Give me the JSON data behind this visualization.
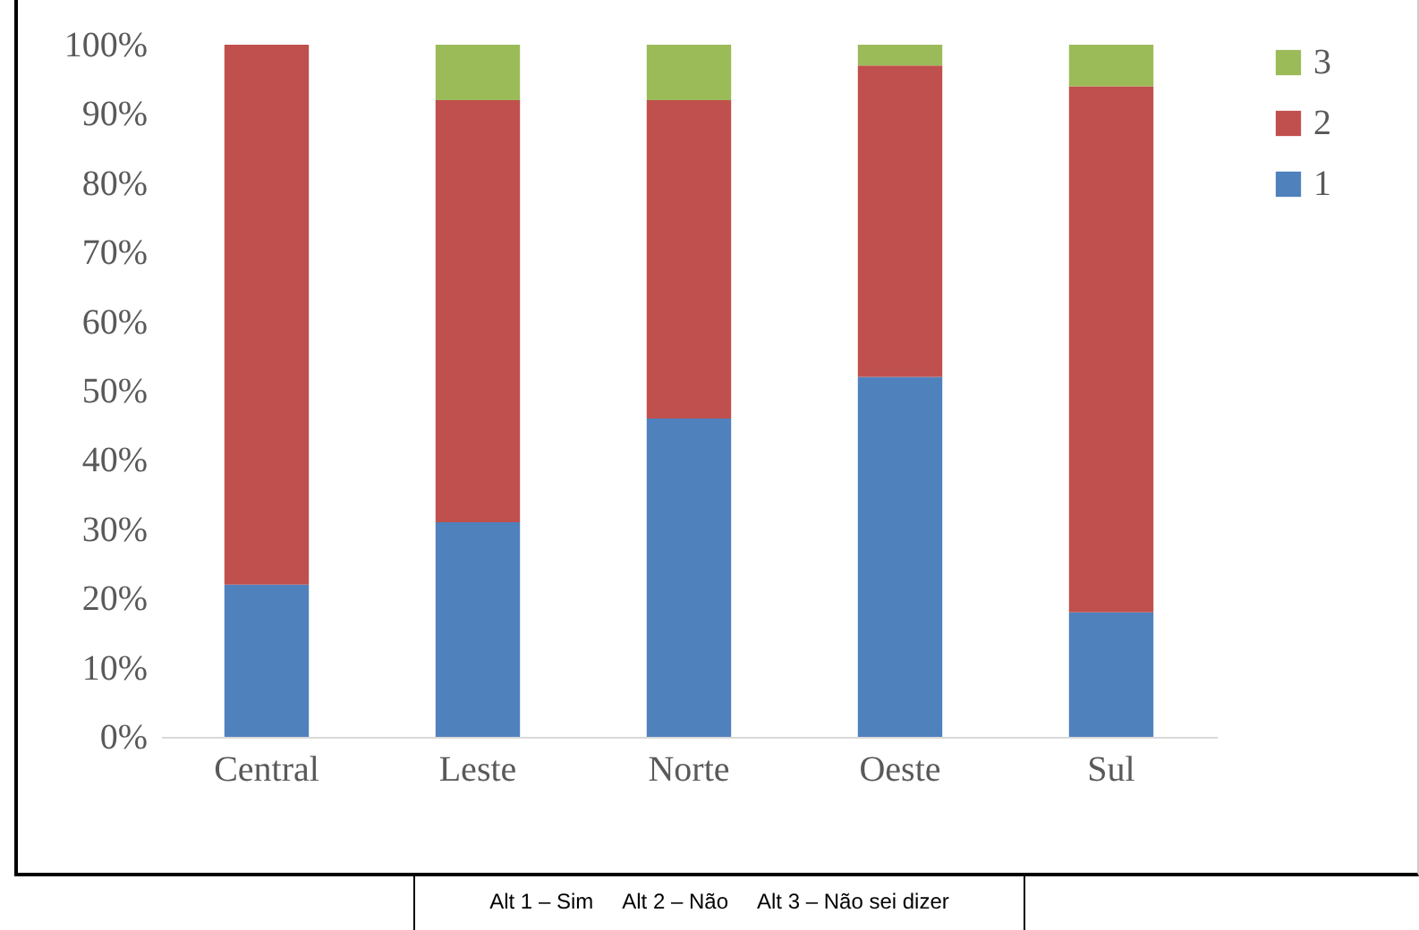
{
  "chart_data": {
    "type": "bar",
    "stacked": true,
    "categories": [
      "Central",
      "Leste",
      "Norte",
      "Oeste",
      "Sul"
    ],
    "series": [
      {
        "name": "1",
        "color": "#4f81bd",
        "values": [
          22,
          31,
          46,
          52,
          18
        ]
      },
      {
        "name": "2",
        "color": "#c0504d",
        "values": [
          78,
          61,
          46,
          45,
          76
        ]
      },
      {
        "name": "3",
        "color": "#9bbb59",
        "values": [
          0,
          8,
          8,
          3,
          6
        ]
      }
    ],
    "ylim": [
      0,
      100
    ],
    "yticks": [
      {
        "value": 0,
        "label": "0%"
      },
      {
        "value": 10,
        "label": "10%"
      },
      {
        "value": 20,
        "label": "20%"
      },
      {
        "value": 30,
        "label": "30%"
      },
      {
        "value": 40,
        "label": "40%"
      },
      {
        "value": 50,
        "label": "50%"
      },
      {
        "value": 60,
        "label": "60%"
      },
      {
        "value": 70,
        "label": "70%"
      },
      {
        "value": 80,
        "label": "80%"
      },
      {
        "value": 90,
        "label": "90%"
      },
      {
        "value": 100,
        "label": "100%"
      }
    ],
    "legend": "right",
    "annotations": [
      "Alt 1 – Sim     Alt 2 – Não     Alt 3 – Não sei dizer"
    ]
  }
}
